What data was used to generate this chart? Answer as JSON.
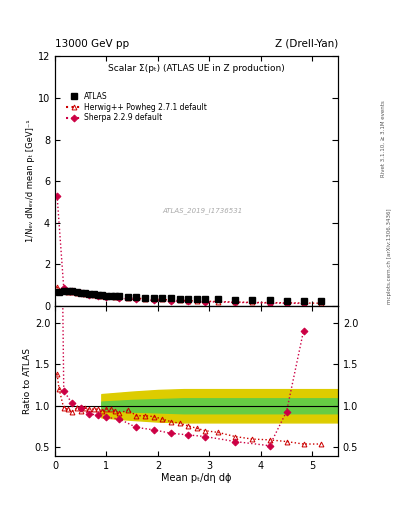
{
  "title_left": "13000 GeV pp",
  "title_right": "Z (Drell-Yan)",
  "main_title": "Scalar Σ(pₜ) (ATLAS UE in Z production)",
  "ylabel_main": "1/Nₑᵥ dNₑᵥ/d mean pₜ [GeV]⁻¹",
  "ylabel_ratio": "Ratio to ATLAS",
  "xlabel": "Mean pₜ/dη dϕ",
  "right_label": "Rivet 3.1.10, ≥ 3.1M events",
  "right_label2": "mcplots.cern.ch [arXiv:1306.3436]",
  "watermark": "ATLAS_2019_I1736531",
  "ylim_main": [
    0,
    12
  ],
  "ylim_ratio": [
    0.4,
    2.2
  ],
  "xlim": [
    0,
    5.5
  ],
  "atlas_x": [
    0.08,
    0.17,
    0.25,
    0.33,
    0.42,
    0.5,
    0.58,
    0.67,
    0.75,
    0.83,
    0.92,
    1.0,
    1.08,
    1.17,
    1.25,
    1.42,
    1.58,
    1.75,
    1.92,
    2.08,
    2.25,
    2.42,
    2.58,
    2.75,
    2.92,
    3.17,
    3.5,
    3.83,
    4.17,
    4.5,
    4.83,
    5.17
  ],
  "atlas_y": [
    0.65,
    0.72,
    0.72,
    0.7,
    0.67,
    0.64,
    0.6,
    0.57,
    0.55,
    0.53,
    0.51,
    0.5,
    0.48,
    0.47,
    0.46,
    0.44,
    0.42,
    0.4,
    0.38,
    0.37,
    0.36,
    0.35,
    0.34,
    0.33,
    0.32,
    0.31,
    0.3,
    0.28,
    0.27,
    0.26,
    0.25,
    0.24
  ],
  "atlas_err": [
    0.03,
    0.02,
    0.02,
    0.02,
    0.02,
    0.02,
    0.02,
    0.02,
    0.02,
    0.02,
    0.02,
    0.02,
    0.02,
    0.02,
    0.02,
    0.02,
    0.02,
    0.02,
    0.02,
    0.02,
    0.02,
    0.02,
    0.01,
    0.01,
    0.01,
    0.01,
    0.01,
    0.01,
    0.01,
    0.01,
    0.01,
    0.01
  ],
  "herwig_x": [
    0.04,
    0.08,
    0.17,
    0.25,
    0.33,
    0.42,
    0.5,
    0.58,
    0.67,
    0.75,
    0.83,
    0.92,
    1.0,
    1.08,
    1.17,
    1.25,
    1.42,
    1.58,
    1.75,
    1.92,
    2.08,
    2.25,
    2.42,
    2.58,
    2.75,
    2.92,
    3.17,
    3.5,
    3.83,
    4.17,
    4.5,
    4.83,
    5.17
  ],
  "herwig_y": [
    0.9,
    0.78,
    0.7,
    0.67,
    0.65,
    0.62,
    0.6,
    0.58,
    0.55,
    0.53,
    0.51,
    0.49,
    0.48,
    0.46,
    0.44,
    0.42,
    0.4,
    0.37,
    0.35,
    0.33,
    0.31,
    0.29,
    0.27,
    0.26,
    0.24,
    0.23,
    0.21,
    0.19,
    0.17,
    0.16,
    0.15,
    0.14,
    0.13
  ],
  "sherpa_x": [
    0.04,
    0.17,
    0.33,
    0.5,
    0.67,
    0.83,
    1.0,
    1.25,
    1.58,
    1.92,
    2.25,
    2.58,
    2.92,
    3.5,
    4.17,
    4.5,
    4.83
  ],
  "sherpa_y": [
    5.3,
    0.85,
    0.72,
    0.62,
    0.54,
    0.47,
    0.43,
    0.37,
    0.31,
    0.27,
    0.24,
    0.22,
    0.2,
    0.17,
    0.14,
    0.13,
    0.12
  ],
  "herwig_ratio_x": [
    0.04,
    0.08,
    0.17,
    0.25,
    0.33,
    0.42,
    0.5,
    0.58,
    0.67,
    0.75,
    0.83,
    0.92,
    1.0,
    1.08,
    1.17,
    1.25,
    1.42,
    1.58,
    1.75,
    1.92,
    2.08,
    2.25,
    2.42,
    2.58,
    2.75,
    2.92,
    3.17,
    3.5,
    3.83,
    4.17,
    4.5,
    4.83,
    5.17
  ],
  "herwig_ratio_y": [
    1.38,
    1.2,
    0.97,
    0.96,
    0.93,
    0.97,
    0.94,
    0.97,
    0.96,
    0.96,
    0.96,
    0.94,
    0.96,
    0.96,
    0.94,
    0.91,
    0.95,
    0.88,
    0.88,
    0.87,
    0.84,
    0.81,
    0.79,
    0.76,
    0.73,
    0.7,
    0.68,
    0.63,
    0.6,
    0.59,
    0.57,
    0.54,
    0.54
  ],
  "sherpa_ratio_x": [
    0.04,
    0.17,
    0.33,
    0.5,
    0.67,
    0.83,
    1.0,
    1.25,
    1.58,
    1.92,
    2.25,
    2.58,
    2.92,
    3.5,
    4.17,
    4.5,
    4.83
  ],
  "sherpa_ratio_y": [
    8.15,
    1.18,
    1.03,
    0.97,
    0.9,
    0.89,
    0.86,
    0.84,
    0.74,
    0.71,
    0.67,
    0.65,
    0.63,
    0.57,
    0.52,
    0.93,
    1.9
  ],
  "green_band_x": [
    0.9,
    1.5,
    2.0,
    2.5,
    3.0,
    3.5,
    4.0,
    4.5,
    5.0,
    5.5
  ],
  "green_band_lo": [
    0.95,
    0.93,
    0.92,
    0.91,
    0.91,
    0.91,
    0.91,
    0.91,
    0.91,
    0.91
  ],
  "green_band_hi": [
    1.05,
    1.07,
    1.08,
    1.09,
    1.09,
    1.09,
    1.09,
    1.09,
    1.09,
    1.09
  ],
  "yellow_band_x": [
    0.9,
    1.5,
    2.0,
    2.5,
    3.0,
    3.5,
    4.0,
    4.5,
    5.0,
    5.5
  ],
  "yellow_band_lo": [
    0.86,
    0.83,
    0.81,
    0.8,
    0.8,
    0.8,
    0.8,
    0.8,
    0.8,
    0.8
  ],
  "yellow_band_hi": [
    1.14,
    1.17,
    1.19,
    1.2,
    1.2,
    1.2,
    1.2,
    1.2,
    1.2,
    1.2
  ],
  "color_atlas": "#000000",
  "color_herwig": "#cc0000",
  "color_sherpa": "#cc0044",
  "color_green": "#66cc44",
  "color_yellow": "#ddcc00",
  "yticks_main": [
    0,
    2,
    4,
    6,
    8,
    10,
    12
  ],
  "yticks_ratio": [
    0.5,
    1.0,
    1.5,
    2.0
  ],
  "xticks": [
    0,
    1,
    2,
    3,
    4,
    5
  ]
}
